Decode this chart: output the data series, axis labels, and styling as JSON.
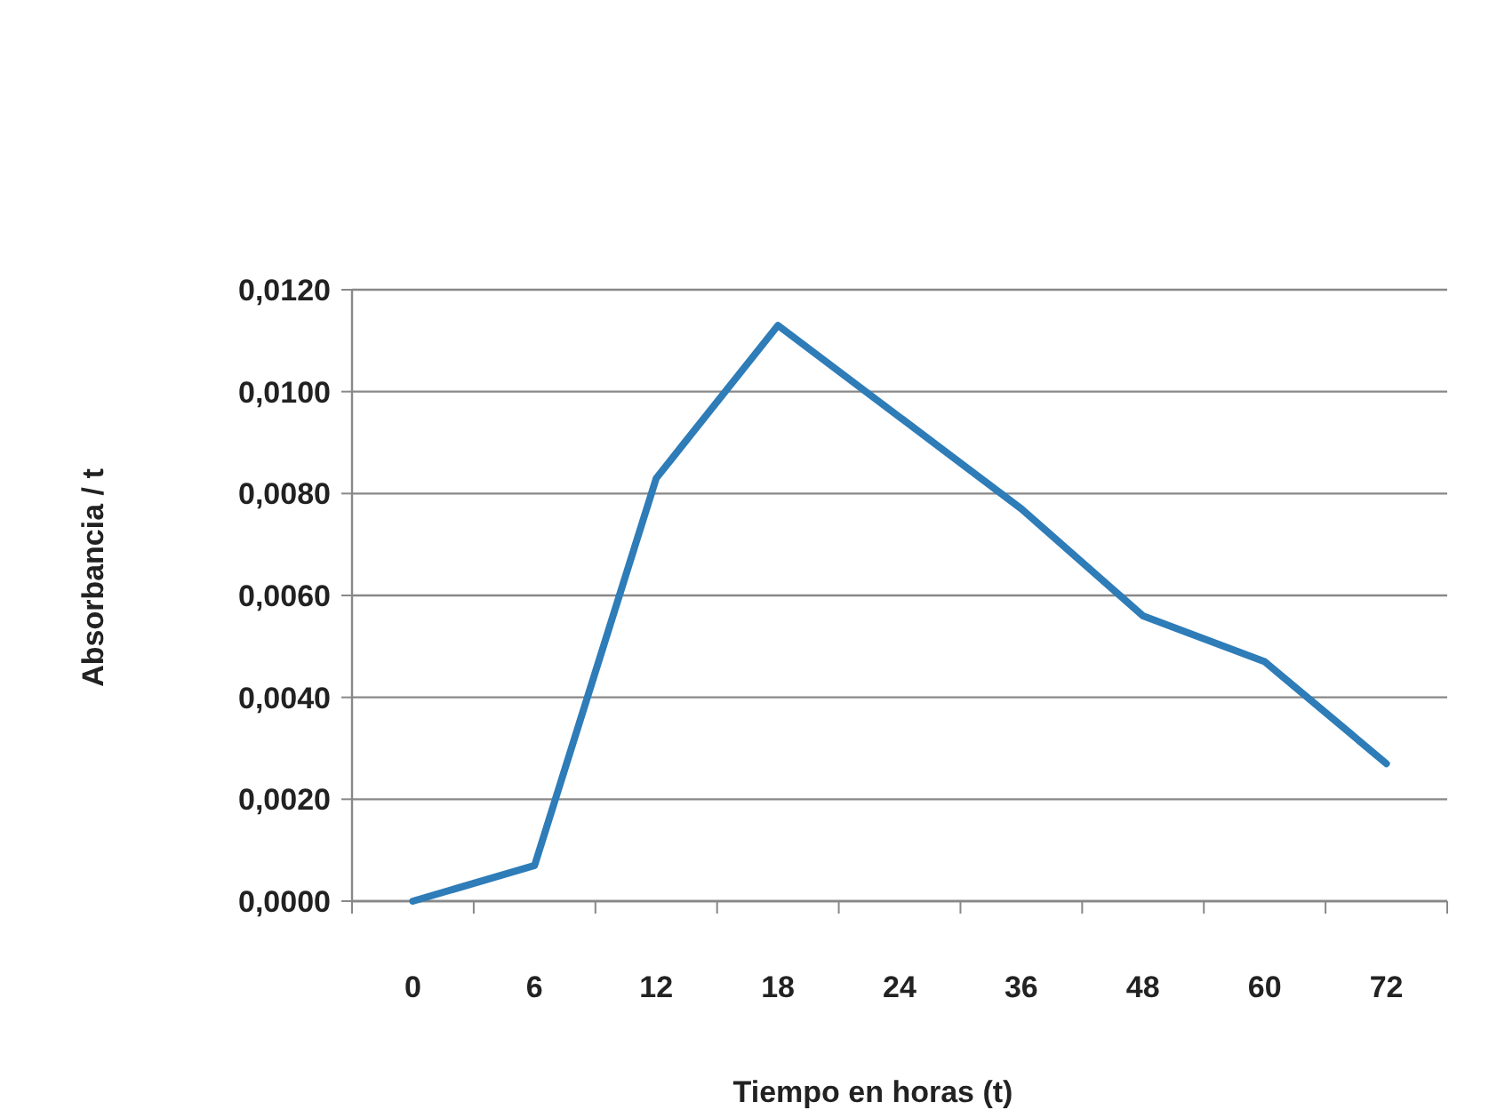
{
  "chart_data": {
    "type": "line",
    "xlabel": "Tiempo en horas (t)",
    "ylabel": "Absorbancia / t",
    "categories": [
      "0",
      "6",
      "12",
      "18",
      "24",
      "36",
      "48",
      "60",
      "72"
    ],
    "series": [
      {
        "color": "#2e7cb8",
        "values": [
          0,
          0.0007,
          0.0083,
          0.0113,
          0.0095,
          0.0077,
          0.0056,
          0.0047,
          0.0027
        ]
      }
    ],
    "ylim": [
      0,
      0.012
    ],
    "yticks": [
      {
        "value": 0,
        "label": "0,0000"
      },
      {
        "value": 0.002,
        "label": "0,0020"
      },
      {
        "value": 0.004,
        "label": "0,0040"
      },
      {
        "value": 0.006,
        "label": "0,0060"
      },
      {
        "value": 0.008,
        "label": "0,0080"
      },
      {
        "value": 0.01,
        "label": "0,0100"
      },
      {
        "value": 0.012,
        "label": "0,0120"
      }
    ],
    "grid": "y",
    "marker": "none",
    "line_style": "solid"
  }
}
